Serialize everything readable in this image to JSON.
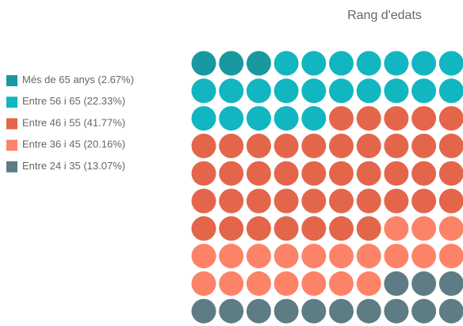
{
  "chart_data": {
    "type": "waffle",
    "title": "Rang d'edats",
    "series": [
      {
        "name": "Més de 65 anys",
        "color": "#17999f",
        "values": [
          2.67
        ],
        "value_labels": [
          "(2.67%)"
        ]
      },
      {
        "name": "Entre 56 i 65",
        "color": "#12b6c0",
        "values": [
          22.33
        ],
        "value_labels": [
          "(22.33%)"
        ]
      },
      {
        "name": "Entre 46 i 55",
        "color": "#e4664a",
        "values": [
          41.77
        ],
        "value_labels": [
          "(41.77%)"
        ]
      },
      {
        "name": "Entre 36 i 45",
        "color": "#fd8368",
        "values": [
          20.16
        ],
        "value_labels": [
          "(20.16%)"
        ]
      },
      {
        "name": "Entre 24 i 35",
        "color": "#5e7c84",
        "values": [
          13.07
        ],
        "value_labels": [
          "(13.07%)"
        ]
      }
    ]
  }
}
